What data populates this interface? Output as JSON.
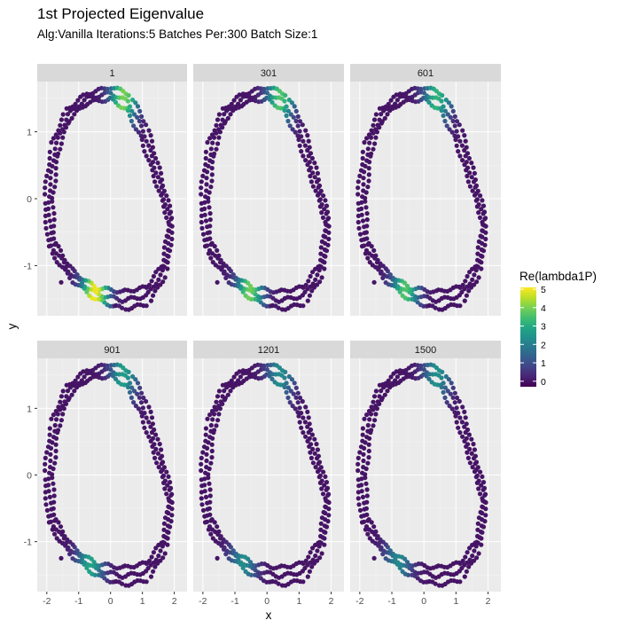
{
  "chart_data": {
    "type": "scatter",
    "title": "1st Projected Eigenvalue",
    "subtitle": "Alg:Vanilla Iterations:5 Batches Per:300 Batch Size:1",
    "xlabel": "x",
    "ylabel": "y",
    "xlim": [
      -2.3,
      2.4
    ],
    "ylim": [
      -1.75,
      1.75
    ],
    "x_ticks": [
      -2,
      -1,
      0,
      1,
      2
    ],
    "x_tick_labels": [
      "-2",
      "-1",
      "0",
      "1",
      "2"
    ],
    "y_ticks": [
      -1,
      0,
      1
    ],
    "y_tick_labels": [
      "-1",
      "0",
      "1"
    ],
    "grid": true,
    "legend": {
      "title": "Re(lambda1P)",
      "position": "right",
      "ticks": [
        0,
        1,
        2,
        3,
        4,
        5
      ],
      "tick_labels": [
        "0",
        "1",
        "2",
        "3",
        "4",
        "5"
      ],
      "range": [
        -0.3,
        5.1
      ],
      "colormap": "viridis"
    },
    "colors": {
      "panel_bg": "#ebebeb",
      "strip_bg": "#d9d9d9",
      "grid_major": "#ffffff",
      "viridis": [
        "#440154",
        "#482475",
        "#414487",
        "#355f8d",
        "#2a788e",
        "#21918c",
        "#22a884",
        "#44bf70",
        "#7ad151",
        "#bddf26",
        "#fde725"
      ]
    },
    "facets": [
      {
        "label": "1",
        "hotspots": [
          {
            "t": 0.36,
            "peak": 4.0
          },
          {
            "t": 0.86,
            "peak": 5.0
          }
        ]
      },
      {
        "label": "301",
        "hotspots": [
          {
            "t": 0.36,
            "peak": 3.6
          },
          {
            "t": 0.865,
            "peak": 3.9
          }
        ]
      },
      {
        "label": "601",
        "hotspots": [
          {
            "t": 0.36,
            "peak": 3.2
          },
          {
            "t": 0.87,
            "peak": 3.6
          }
        ]
      },
      {
        "label": "901",
        "hotspots": [
          {
            "t": 0.36,
            "peak": 2.7
          },
          {
            "t": 0.875,
            "peak": 2.8
          }
        ]
      },
      {
        "label": "1201",
        "hotspots": [
          {
            "t": 0.36,
            "peak": 2.3
          },
          {
            "t": 0.885,
            "peak": 2.3
          }
        ]
      },
      {
        "label": "1500",
        "hotspots": [
          {
            "t": 0.36,
            "peak": 2.4
          },
          {
            "t": 0.89,
            "peak": 2.2
          }
        ]
      }
    ]
  }
}
